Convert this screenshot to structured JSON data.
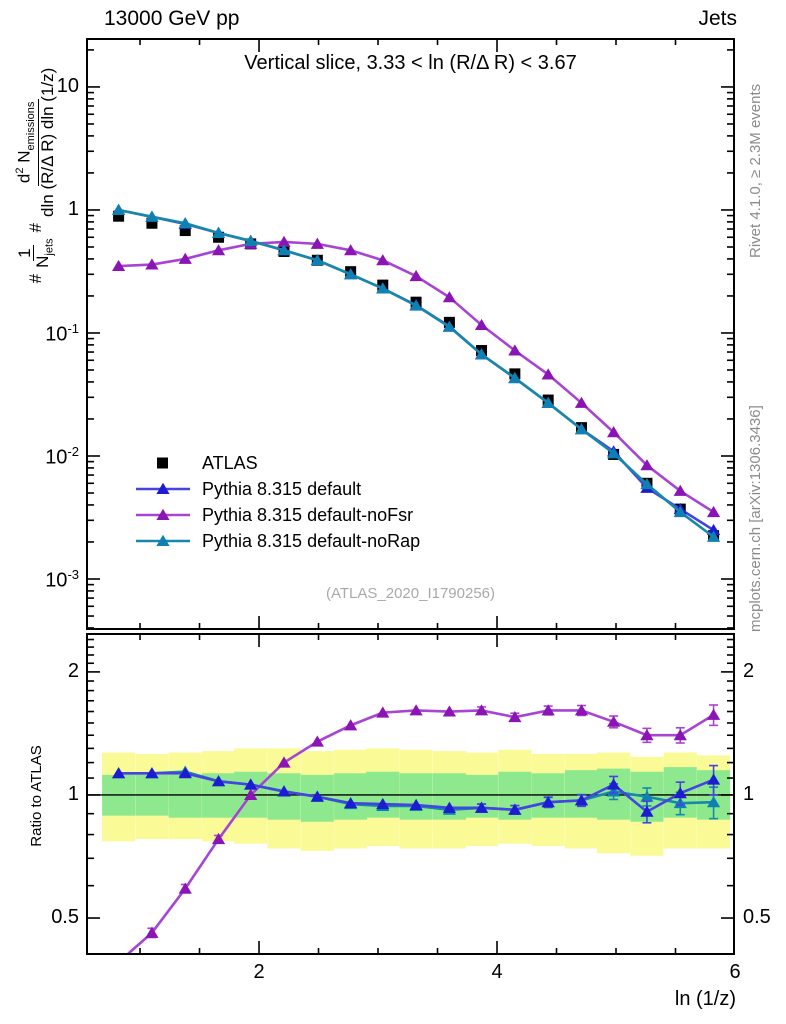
{
  "header": {
    "left": "13000 GeV pp",
    "right": "Jets"
  },
  "side_notes": {
    "top_right": "Rivet 4.1.0, ≥ 2.3M events",
    "bottom_right": "mcplots.cern.ch [arXiv:1306.3436]"
  },
  "chart_data": {
    "type": "line",
    "title": "Vertical slice, 3.33 < ln (R/Δ R) < 3.67",
    "watermark": "(ATLAS_2020_I1790256)",
    "xlabel": "ln (1/z)",
    "x_range": [
      0.546,
      6.0
    ],
    "x_ticks": [
      {
        "text": "2",
        "value": 2
      },
      {
        "text": "4",
        "value": 4
      },
      {
        "text": "6",
        "value": 6
      }
    ],
    "x_minor_step": 0.5,
    "x": [
      0.82,
      1.1,
      1.38,
      1.66,
      1.93,
      2.21,
      2.49,
      2.77,
      3.04,
      3.32,
      3.6,
      3.87,
      4.15,
      4.43,
      4.71,
      4.98,
      5.26,
      5.54,
      5.82
    ],
    "bin_half_width": 0.139,
    "main_panel": {
      "ylabel_plain": "# 1/N_jets # d^2 N_emissions / dln (R/Δ R) dln (1/z)",
      "ylabel_parts": {
        "hash1": "#",
        "frac1_num": "1",
        "frac1_den": "N",
        "frac1_den_sub": "jets",
        "hash2": "#",
        "frac2_num_a": "d",
        "frac2_num_sup": "2",
        "frac2_num_b": " N",
        "frac2_num_sub": "emissions",
        "frac2_den": "dln (R/Δ R) dln (1/z)"
      },
      "yscale": "log",
      "y_range": [
        0.000385,
        25
      ],
      "y_ticks": [
        {
          "text": "10",
          "value": 10
        },
        {
          "text": "1",
          "value": 1
        },
        {
          "text": "10^{-1}",
          "value": 0.1
        },
        {
          "text": "10^{-2}",
          "value": 0.01
        },
        {
          "text": "10^{-3}",
          "value": 0.001
        }
      ],
      "series": [
        {
          "name": "ATLAS",
          "marker": "square",
          "color": "#000000",
          "line": null,
          "values": [
            0.89,
            0.78,
            0.68,
            0.6,
            0.53,
            0.46,
            0.39,
            0.315,
            0.245,
            0.178,
            0.122,
            0.072,
            0.0465,
            0.0285,
            0.017,
            0.0103,
            0.006,
            0.0037,
            0.00225
          ],
          "rel_err": [
            0.02,
            0.02,
            0.02,
            0.02,
            0.02,
            0.02,
            0.02,
            0.02,
            0.02,
            0.02,
            0.02,
            0.025,
            0.025,
            0.03,
            0.035,
            0.045,
            0.055,
            0.07,
            0.09
          ]
        },
        {
          "name": "Pythia 8.315 default",
          "marker": "triangle",
          "color": "#1c1cd0",
          "line": "#4444e0",
          "values": [
            1.0,
            0.88,
            0.77,
            0.65,
            0.56,
            0.47,
            0.39,
            0.3,
            0.23,
            0.168,
            0.113,
            0.067,
            0.043,
            0.027,
            0.0165,
            0.0109,
            0.0055,
            0.0037,
            0.0025
          ],
          "rel_err": [
            0.01,
            0.01,
            0.01,
            0.01,
            0.01,
            0.01,
            0.01,
            0.01,
            0.01,
            0.01,
            0.01,
            0.012,
            0.015,
            0.018,
            0.022,
            0.03,
            0.035,
            0.045,
            0.06
          ]
        },
        {
          "name": "Pythia 8.315 default-noFsr",
          "marker": "triangle",
          "color": "#8a14b4",
          "line": "#a844d4",
          "values": [
            0.35,
            0.36,
            0.4,
            0.47,
            0.53,
            0.55,
            0.53,
            0.47,
            0.39,
            0.29,
            0.195,
            0.116,
            0.072,
            0.046,
            0.027,
            0.0156,
            0.0084,
            0.0052,
            0.0035
          ],
          "rel_err": [
            0.01,
            0.01,
            0.01,
            0.01,
            0.01,
            0.01,
            0.01,
            0.01,
            0.01,
            0.01,
            0.01,
            0.012,
            0.015,
            0.018,
            0.022,
            0.03,
            0.035,
            0.045,
            0.06
          ]
        },
        {
          "name": "Pythia 8.315 default-noRap",
          "marker": "triangle",
          "color": "#0e81b2",
          "line": "#1787aa",
          "values": [
            1.0,
            0.88,
            0.78,
            0.65,
            0.56,
            0.47,
            0.39,
            0.3,
            0.23,
            0.167,
            0.112,
            0.067,
            0.043,
            0.027,
            0.0165,
            0.0105,
            0.0059,
            0.0035,
            0.0022
          ],
          "rel_err": [
            0.01,
            0.01,
            0.01,
            0.01,
            0.01,
            0.01,
            0.01,
            0.01,
            0.01,
            0.01,
            0.01,
            0.012,
            0.015,
            0.018,
            0.022,
            0.03,
            0.035,
            0.045,
            0.06
          ]
        }
      ]
    },
    "ratio_panel": {
      "ylabel": "Ratio to ATLAS",
      "yscale": "log",
      "y_range": [
        0.406,
        2.49
      ],
      "y_ticks": [
        {
          "text": "2",
          "value": 2
        },
        {
          "text": "1",
          "value": 1
        },
        {
          "text": "0.5",
          "value": 0.5
        }
      ],
      "reference_line": 1,
      "bands": {
        "yellow_color": "#fafa96",
        "green_color": "#8ee98e",
        "yellow_lo": [
          0.77,
          0.78,
          0.78,
          0.77,
          0.76,
          0.74,
          0.73,
          0.74,
          0.75,
          0.74,
          0.74,
          0.75,
          0.76,
          0.75,
          0.74,
          0.72,
          0.71,
          0.74,
          0.74
        ],
        "yellow_hi": [
          1.27,
          1.26,
          1.27,
          1.28,
          1.3,
          1.3,
          1.28,
          1.29,
          1.3,
          1.29,
          1.28,
          1.27,
          1.29,
          1.26,
          1.26,
          1.27,
          1.24,
          1.27,
          1.25
        ],
        "green_lo": [
          0.89,
          0.89,
          0.88,
          0.88,
          0.88,
          0.87,
          0.86,
          0.87,
          0.88,
          0.87,
          0.87,
          0.88,
          0.87,
          0.88,
          0.88,
          0.87,
          0.86,
          0.88,
          0.87
        ],
        "green_hi": [
          1.12,
          1.12,
          1.12,
          1.13,
          1.14,
          1.13,
          1.12,
          1.13,
          1.14,
          1.13,
          1.13,
          1.12,
          1.14,
          1.13,
          1.15,
          1.16,
          1.14,
          1.17,
          1.15
        ]
      },
      "series": [
        {
          "name": "Pythia 8.315 default-noFsr",
          "ratios": [
            0.39,
            0.46,
            0.59,
            0.78,
            1.0,
            1.2,
            1.35,
            1.48,
            1.59,
            1.61,
            1.6,
            1.61,
            1.55,
            1.61,
            1.61,
            1.51,
            1.4,
            1.4,
            1.57
          ],
          "err": [
            0.01,
            0.012,
            0.014,
            0.016,
            0.018,
            0.02,
            0.022,
            0.024,
            0.026,
            0.028,
            0.03,
            0.032,
            0.035,
            0.04,
            0.045,
            0.05,
            0.055,
            0.06,
            0.09
          ]
        },
        {
          "name": "Pythia 8.315 default-noRap",
          "ratios": [
            1.13,
            1.13,
            1.14,
            1.08,
            1.06,
            1.02,
            0.99,
            0.95,
            0.94,
            0.94,
            0.92,
            0.93,
            0.92,
            0.96,
            0.97,
            1.02,
            0.99,
            0.955,
            0.96
          ],
          "err": [
            0.012,
            0.012,
            0.012,
            0.012,
            0.012,
            0.012,
            0.012,
            0.012,
            0.013,
            0.015,
            0.018,
            0.02,
            0.022,
            0.026,
            0.03,
            0.045,
            0.05,
            0.06,
            0.085
          ]
        },
        {
          "name": "Pythia 8.315 default",
          "ratios": [
            1.13,
            1.13,
            1.13,
            1.08,
            1.06,
            1.02,
            0.99,
            0.955,
            0.95,
            0.945,
            0.93,
            0.93,
            0.92,
            0.96,
            0.97,
            1.06,
            0.91,
            1.01,
            1.09
          ],
          "err": [
            0.012,
            0.012,
            0.012,
            0.012,
            0.012,
            0.012,
            0.012,
            0.012,
            0.013,
            0.015,
            0.018,
            0.02,
            0.022,
            0.028,
            0.032,
            0.05,
            0.055,
            0.065,
            0.09
          ]
        }
      ]
    },
    "legend_entries": [
      "ATLAS",
      "Pythia 8.315 default",
      "Pythia 8.315 default-noFsr",
      "Pythia 8.315 default-noRap"
    ]
  }
}
